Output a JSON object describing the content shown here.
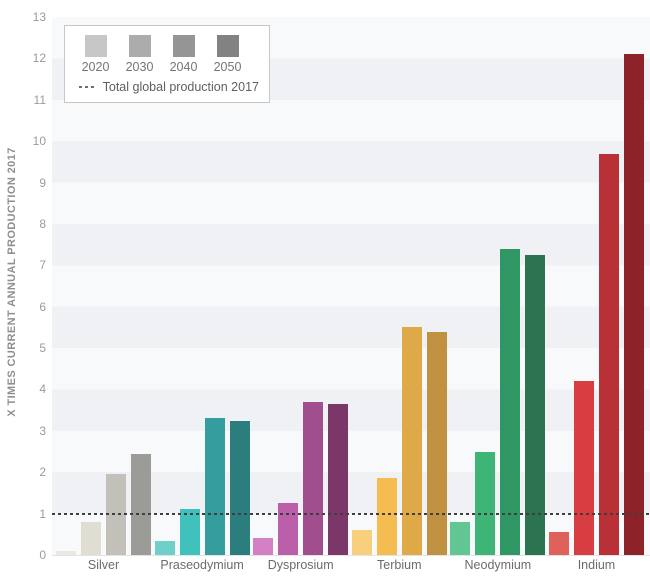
{
  "chart_data": {
    "type": "bar",
    "title": "",
    "ylabel": "X TIMES CURRENT ANNUAL PRODUCTION 2017",
    "xlabel": "",
    "ylim": [
      0,
      13
    ],
    "yticks": [
      "0",
      "1",
      "2",
      "3",
      "4",
      "5",
      "6",
      "7",
      "8",
      "9",
      "10",
      "11",
      "12",
      "13"
    ],
    "grid": "alternating horizontal bands, 1-unit tall",
    "legend_position": "top-left boxed",
    "series_labels": [
      "2020",
      "2030",
      "2040",
      "2050"
    ],
    "reference_line": {
      "value": 1,
      "label": "Total global production 2017",
      "style": "dashed"
    },
    "groups": [
      {
        "category": "Silver",
        "values": [
          0.1,
          0.8,
          1.95,
          2.45
        ],
        "colors": [
          "#eae8df",
          "#e0ddd2",
          "#c2c0b8",
          "#9b9b98"
        ]
      },
      {
        "category": "Praseodymium",
        "values": [
          0.35,
          1.1,
          3.3,
          3.25
        ],
        "colors": [
          "#6fcfca",
          "#40c1bb",
          "#359d9d",
          "#2b7d7e"
        ]
      },
      {
        "category": "Dysprosium",
        "values": [
          0.4,
          1.25,
          3.7,
          3.65
        ],
        "colors": [
          "#d480c5",
          "#bc5fab",
          "#a04e8d",
          "#7b3767"
        ]
      },
      {
        "category": "Terbium",
        "values": [
          0.6,
          1.85,
          5.5,
          5.4
        ],
        "colors": [
          "#f8cf7d",
          "#f5bc52",
          "#dfa948",
          "#bf9140"
        ]
      },
      {
        "category": "Neodymium",
        "values": [
          0.8,
          2.5,
          7.4,
          7.25
        ],
        "colors": [
          "#62c693",
          "#3eb577",
          "#2f9763",
          "#2c7351"
        ]
      },
      {
        "category": "Indium",
        "values": [
          0.55,
          4.2,
          9.7,
          12.1
        ],
        "colors": [
          "#e0615a",
          "#d83e41",
          "#b93037",
          "#8d2329"
        ]
      }
    ]
  },
  "legend": {
    "years": [
      "2020",
      "2030",
      "2040",
      "2050"
    ],
    "swatch_colors": [
      "#c7c7c7",
      "#acacac",
      "#959595",
      "#828282"
    ],
    "reference_label": "Total global production 2017"
  },
  "axis": {
    "y_title": "X TIMES CURRENT ANNUAL PRODUCTION 2017"
  }
}
